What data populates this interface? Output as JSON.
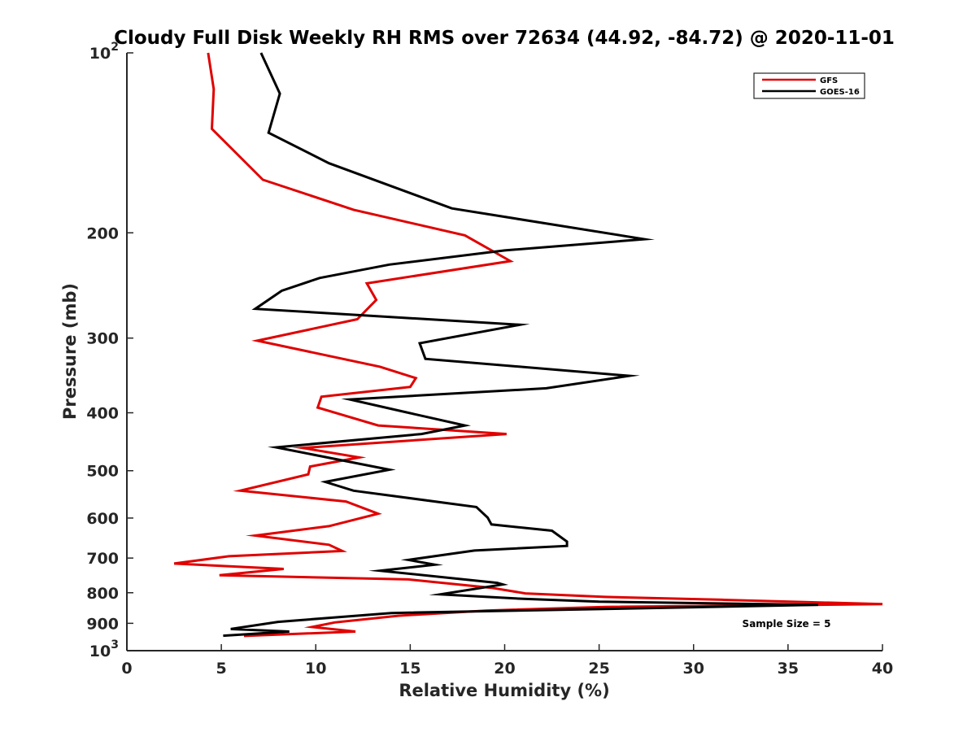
{
  "chart_data": {
    "type": "line",
    "title": "Cloudy Full Disk Weekly RH RMS over 72634 (44.92, -84.72) @ 2020-11-01",
    "xlabel": "Relative Humidity (%)",
    "ylabel": "Pressure (mb)",
    "xlim": [
      0,
      40
    ],
    "ylim": [
      100,
      1000
    ],
    "y_scale": "log",
    "y_reversed": true,
    "x_ticks": [
      "0",
      "5",
      "10",
      "15",
      "20",
      "25",
      "30",
      "35",
      "40"
    ],
    "y_ticks": [
      {
        "value": 100,
        "base": "10",
        "exp": "2"
      },
      {
        "value": 200,
        "label": "200"
      },
      {
        "value": 300,
        "label": "300"
      },
      {
        "value": 400,
        "label": "400"
      },
      {
        "value": 500,
        "label": "500"
      },
      {
        "value": 600,
        "label": "600"
      },
      {
        "value": 700,
        "label": "700"
      },
      {
        "value": 800,
        "label": "800"
      },
      {
        "value": 900,
        "label": "900"
      },
      {
        "value": 1000,
        "base": "10",
        "exp": "3"
      }
    ],
    "grid": false,
    "legend_position": "top-right",
    "annotation": "Sample Size = 5",
    "series": [
      {
        "name": "GFS",
        "color": "#e00000",
        "points": [
          [
            4.3,
            100
          ],
          [
            4.6,
            115
          ],
          [
            4.5,
            134
          ],
          [
            7.2,
            163
          ],
          [
            12.0,
            183
          ],
          [
            17.9,
            202
          ],
          [
            20.3,
            223
          ],
          [
            12.7,
            243
          ],
          [
            13.2,
            259
          ],
          [
            12.2,
            279
          ],
          [
            6.9,
            303
          ],
          [
            13.4,
            335
          ],
          [
            15.3,
            350
          ],
          [
            15.0,
            362
          ],
          [
            10.3,
            376
          ],
          [
            10.1,
            392
          ],
          [
            13.3,
            420
          ],
          [
            20.1,
            434
          ],
          [
            9.3,
            458
          ],
          [
            12.3,
            475
          ],
          [
            9.7,
            492
          ],
          [
            9.6,
            507
          ],
          [
            6.0,
            540
          ],
          [
            11.6,
            563
          ],
          [
            13.3,
            590
          ],
          [
            10.7,
            619
          ],
          [
            6.8,
            642
          ],
          [
            10.7,
            665
          ],
          [
            11.4,
            681
          ],
          [
            5.4,
            695
          ],
          [
            2.5,
            715
          ],
          [
            8.3,
            730
          ],
          [
            4.9,
            748
          ],
          [
            14.9,
            760
          ],
          [
            19.3,
            785
          ],
          [
            21.1,
            802
          ],
          [
            25.3,
            813
          ],
          [
            31.5,
            822
          ],
          [
            40.0,
            836
          ],
          [
            25.3,
            845
          ],
          [
            19.0,
            857
          ],
          [
            14.4,
            874
          ],
          [
            11.0,
            897
          ],
          [
            9.8,
            913
          ],
          [
            12.1,
            929
          ],
          [
            6.2,
            945
          ]
        ]
      },
      {
        "name": "GOES-16",
        "color": "#000000",
        "points": [
          [
            7.1,
            100
          ],
          [
            8.1,
            117
          ],
          [
            7.5,
            136
          ],
          [
            10.7,
            153
          ],
          [
            17.2,
            182
          ],
          [
            27.4,
            205
          ],
          [
            20.0,
            214
          ],
          [
            13.9,
            226
          ],
          [
            10.2,
            238
          ],
          [
            8.2,
            250
          ],
          [
            6.8,
            268
          ],
          [
            20.8,
            285
          ],
          [
            15.5,
            306
          ],
          [
            15.8,
            325
          ],
          [
            26.6,
            347
          ],
          [
            22.2,
            364
          ],
          [
            11.8,
            380
          ],
          [
            15.2,
            402
          ],
          [
            17.9,
            420
          ],
          [
            15.6,
            434
          ],
          [
            7.9,
            457
          ],
          [
            13.9,
            498
          ],
          [
            10.5,
            522
          ],
          [
            12.0,
            540
          ],
          [
            18.5,
            575
          ],
          [
            19.1,
            599
          ],
          [
            19.3,
            615
          ],
          [
            22.5,
            630
          ],
          [
            23.3,
            657
          ],
          [
            23.3,
            668
          ],
          [
            18.4,
            680
          ],
          [
            14.9,
            705
          ],
          [
            16.3,
            718
          ],
          [
            13.4,
            735
          ],
          [
            19.6,
            770
          ],
          [
            19.9,
            775
          ],
          [
            16.6,
            805
          ],
          [
            21.0,
            819
          ],
          [
            25.0,
            828
          ],
          [
            36.6,
            838
          ],
          [
            30.0,
            846
          ],
          [
            14.0,
            865
          ],
          [
            8.0,
            895
          ],
          [
            5.5,
            920
          ],
          [
            8.6,
            929
          ],
          [
            5.1,
            944
          ]
        ]
      }
    ]
  }
}
